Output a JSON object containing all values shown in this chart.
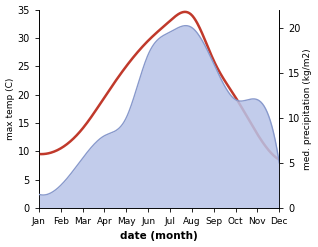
{
  "months": [
    "Jan",
    "Feb",
    "Mar",
    "Apr",
    "May",
    "Jun",
    "Jul",
    "Aug",
    "Sep",
    "Oct",
    "Nov",
    "Dec"
  ],
  "month_indices": [
    0,
    1,
    2,
    3,
    4,
    5,
    6,
    7,
    8,
    9,
    10,
    11
  ],
  "temp_max": [
    9.5,
    10.5,
    14.0,
    19.5,
    25.0,
    29.5,
    33.0,
    34.0,
    26.0,
    19.5,
    13.0,
    8.5
  ],
  "precip": [
    1.5,
    2.5,
    5.5,
    8.0,
    10.0,
    17.0,
    19.5,
    20.0,
    16.0,
    12.0,
    12.0,
    5.0
  ],
  "temp_color": "#c0392b",
  "precip_fill_color": "#b8c4e8",
  "precip_line_color": "#8899cc",
  "temp_ylim": [
    0,
    35
  ],
  "precip_ylim": [
    0,
    22
  ],
  "temp_yticks": [
    0,
    5,
    10,
    15,
    20,
    25,
    30,
    35
  ],
  "precip_yticks": [
    0,
    5,
    10,
    15,
    20
  ],
  "ylabel_left": "max temp (C)",
  "ylabel_right": "med. precipitation (kg/m2)",
  "xlabel": "date (month)",
  "bg_color": "#ffffff"
}
